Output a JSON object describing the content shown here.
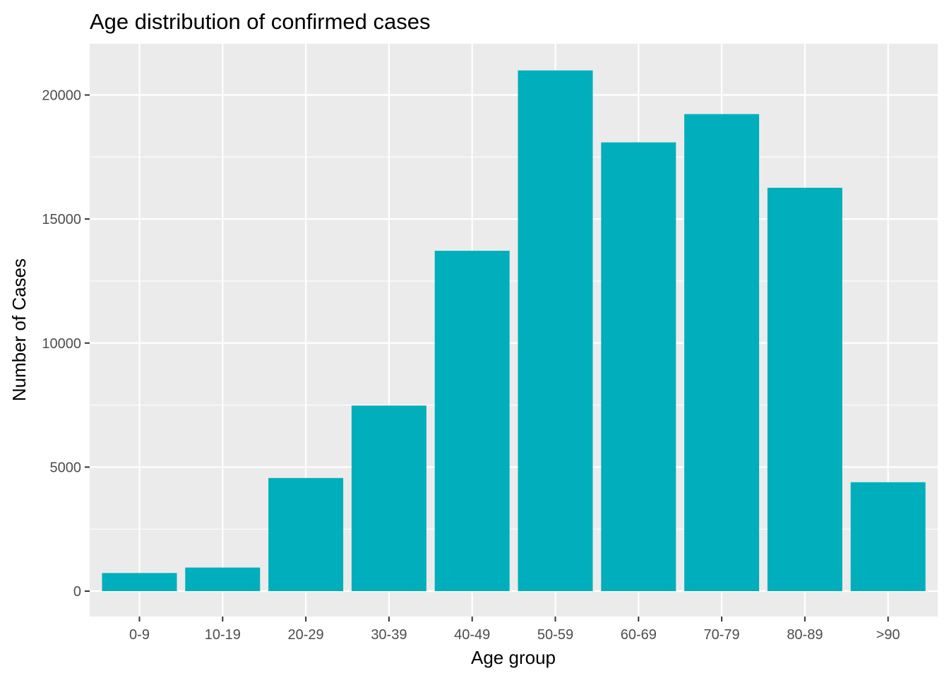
{
  "chart_data": {
    "type": "bar",
    "title": "Age distribution of confirmed cases",
    "xlabel": "Age group",
    "ylabel": "Number of Cases",
    "categories": [
      "0-9",
      "10-19",
      "20-29",
      "30-39",
      "40-49",
      "50-59",
      "60-69",
      "70-79",
      "80-89",
      ">90"
    ],
    "values": [
      730,
      950,
      4560,
      7480,
      13720,
      20990,
      18090,
      19230,
      16260,
      4390
    ],
    "ylim": [
      0,
      22000
    ],
    "yticks": [
      0,
      5000,
      10000,
      15000,
      20000
    ],
    "grid": true,
    "bar_color": "#00AFBB",
    "panel_color": "#EBEBEB",
    "grid_color": "#FFFFFF"
  }
}
